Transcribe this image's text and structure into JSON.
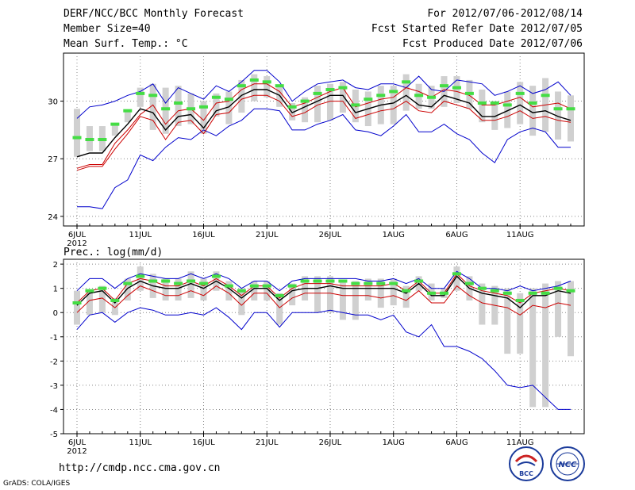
{
  "header": {
    "title": "DERF/NCC/BCC Monthly Forecast",
    "member_size": "Member Size=40",
    "variable": "Mean Surf. Temp.: °C",
    "period": "For 2012/07/06-2012/08/14",
    "started": "Fcst Started Refer Date 2012/07/05",
    "produced": "Fcst Produced Date 2012/07/06"
  },
  "footer": {
    "url": "http://cmdp.ncc.cma.gov.cn",
    "credit": "GrADS: COLA/IGES",
    "logo1_text": "BCC",
    "logo2_text": "NCC"
  },
  "colors": {
    "envelope": "#0000cc",
    "spread": "#cc0000",
    "mean": "#000000",
    "median": "#44dd44",
    "box": "#d0d0d0",
    "grid": "#888888"
  },
  "chart_data": [
    {
      "type": "line",
      "title": "Mean Surf. Temp.: °C",
      "xlabel": "",
      "ylabel": "°C",
      "ylim": [
        23.5,
        32.5
      ],
      "yticks": [
        24,
        27,
        30
      ],
      "grid": true,
      "x_tick_labels": [
        "6JUL",
        "11JUL",
        "16JUL",
        "21JUL",
        "26JUL",
        "1AUG",
        "6AUG",
        "11AUG"
      ],
      "x_year_label": "2012",
      "days": 40,
      "series": [
        {
          "name": "max",
          "values": [
            29.1,
            29.7,
            29.8,
            30.0,
            30.3,
            30.5,
            30.9,
            29.9,
            30.7,
            30.4,
            30.1,
            30.8,
            30.5,
            31.0,
            31.6,
            31.6,
            31.0,
            30.0,
            30.5,
            30.9,
            31.0,
            31.1,
            30.7,
            30.6,
            30.9,
            30.9,
            30.7,
            31.3,
            30.6,
            30.5,
            31.1,
            31.0,
            30.9,
            30.3,
            30.5,
            30.8,
            30.4,
            30.6,
            31.0,
            30.3
          ]
        },
        {
          "name": "p75",
          "values": [
            26.5,
            26.7,
            26.7,
            27.8,
            28.5,
            29.3,
            29.8,
            28.8,
            29.5,
            29.6,
            29.0,
            29.9,
            30.0,
            30.6,
            30.9,
            30.9,
            30.5,
            29.7,
            29.9,
            30.2,
            30.5,
            30.7,
            29.7,
            29.9,
            30.1,
            30.2,
            30.7,
            30.5,
            30.2,
            30.6,
            30.5,
            30.3,
            29.8,
            29.8,
            30.0,
            30.2,
            29.7,
            29.8,
            29.9,
            29.6
          ]
        },
        {
          "name": "mean",
          "values": [
            27.1,
            27.3,
            27.3,
            28.1,
            28.8,
            29.6,
            29.4,
            28.5,
            29.2,
            29.3,
            28.6,
            29.5,
            29.7,
            30.3,
            30.6,
            30.6,
            30.3,
            29.4,
            29.7,
            30.0,
            30.3,
            30.3,
            29.4,
            29.6,
            29.8,
            29.9,
            30.3,
            29.8,
            29.7,
            30.3,
            30.1,
            29.9,
            29.2,
            29.2,
            29.5,
            29.8,
            29.4,
            29.5,
            29.2,
            29.0
          ]
        },
        {
          "name": "p25",
          "values": [
            26.4,
            26.6,
            26.6,
            27.5,
            28.3,
            29.2,
            29.0,
            28.0,
            28.9,
            29.0,
            28.3,
            29.3,
            29.4,
            30.1,
            30.3,
            30.3,
            30.0,
            29.2,
            29.4,
            29.8,
            30.0,
            30.0,
            29.1,
            29.3,
            29.5,
            29.6,
            30.0,
            29.5,
            29.4,
            30.0,
            29.8,
            29.6,
            29.0,
            29.0,
            29.2,
            29.5,
            29.1,
            29.2,
            29.0,
            28.9
          ]
        },
        {
          "name": "min",
          "values": [
            24.5,
            24.5,
            24.4,
            25.5,
            25.9,
            27.2,
            26.9,
            27.6,
            28.1,
            28.0,
            28.5,
            28.2,
            28.7,
            29.0,
            29.6,
            29.6,
            29.5,
            28.5,
            28.5,
            28.8,
            29.0,
            29.3,
            28.5,
            28.4,
            28.2,
            28.7,
            29.3,
            28.4,
            28.4,
            28.8,
            28.3,
            28.0,
            27.3,
            26.8,
            28.0,
            28.4,
            28.6,
            28.4,
            27.6,
            27.6
          ]
        },
        {
          "name": "median",
          "values": [
            28.1,
            28.0,
            28.0,
            28.8,
            29.5,
            30.4,
            30.3,
            29.6,
            29.9,
            29.6,
            29.7,
            30.2,
            30.1,
            30.8,
            31.1,
            31.0,
            30.8,
            29.7,
            30.0,
            30.4,
            30.6,
            30.7,
            29.8,
            30.1,
            30.3,
            30.5,
            31.0,
            30.3,
            30.2,
            30.8,
            30.7,
            30.4,
            29.9,
            29.9,
            29.8,
            30.4,
            29.9,
            30.3,
            29.6,
            29.6
          ]
        },
        {
          "name": "box_low",
          "values": [
            27.1,
            27.4,
            27.4,
            28.2,
            28.9,
            29.7,
            28.5,
            28.3,
            28.7,
            28.8,
            28.3,
            29.2,
            28.8,
            29.4,
            30.0,
            30.2,
            29.7,
            29.0,
            28.9,
            28.9,
            29.0,
            29.4,
            28.9,
            28.7,
            28.8,
            28.8,
            29.5,
            29.6,
            29.6,
            29.7,
            29.9,
            29.6,
            28.9,
            28.5,
            28.6,
            28.8,
            28.2,
            28.4,
            28.0,
            27.9
          ]
        },
        {
          "name": "box_high",
          "values": [
            29.6,
            28.7,
            28.7,
            28.8,
            29.5,
            30.7,
            30.9,
            30.7,
            30.8,
            30.4,
            30.0,
            30.4,
            30.5,
            31.1,
            31.4,
            31.3,
            30.8,
            29.9,
            30.2,
            30.8,
            30.9,
            31.0,
            30.6,
            30.5,
            30.8,
            30.8,
            31.4,
            30.9,
            30.8,
            31.3,
            31.3,
            31.1,
            30.6,
            30.0,
            30.5,
            31.0,
            30.8,
            31.2,
            30.5,
            30.3
          ]
        }
      ]
    },
    {
      "type": "line",
      "title": "Prec.: log(mm/d)",
      "xlabel": "",
      "ylabel": "log(mm/d)",
      "ylim": [
        -5,
        2.2
      ],
      "yticks": [
        -5,
        -4,
        -3,
        -2,
        -1,
        0,
        1,
        2
      ],
      "grid": true,
      "x_tick_labels": [
        "6JUL",
        "11JUL",
        "16JUL",
        "21JUL",
        "26JUL",
        "1AUG",
        "6AUG",
        "11AUG"
      ],
      "x_year_label": "2012",
      "days": 40,
      "series": [
        {
          "name": "max",
          "values": [
            0.9,
            1.4,
            1.4,
            1.0,
            1.4,
            1.6,
            1.5,
            1.4,
            1.4,
            1.6,
            1.4,
            1.6,
            1.4,
            1.0,
            1.3,
            1.3,
            0.9,
            1.3,
            1.4,
            1.4,
            1.4,
            1.4,
            1.4,
            1.3,
            1.3,
            1.4,
            1.2,
            1.4,
            1.0,
            1.0,
            1.7,
            1.4,
            1.0,
            1.0,
            0.9,
            1.1,
            0.9,
            1.0,
            1.1,
            1.3
          ]
        },
        {
          "name": "p75",
          "values": [
            0.4,
            0.9,
            1.0,
            0.5,
            1.2,
            1.4,
            1.3,
            1.1,
            1.1,
            1.3,
            1.1,
            1.4,
            1.1,
            0.7,
            1.1,
            1.1,
            0.6,
            1.0,
            1.2,
            1.2,
            1.2,
            1.1,
            1.1,
            1.1,
            1.1,
            1.2,
            0.9,
            1.3,
            0.8,
            0.8,
            1.6,
            1.1,
            0.9,
            0.8,
            0.7,
            0.4,
            0.8,
            0.9,
            1.0,
            0.9
          ]
        },
        {
          "name": "mean",
          "values": [
            0.3,
            0.8,
            0.9,
            0.4,
            1.0,
            1.3,
            1.1,
            1.0,
            1.0,
            1.2,
            1.0,
            1.3,
            1.0,
            0.6,
            1.0,
            1.0,
            0.5,
            0.9,
            1.0,
            1.0,
            1.1,
            1.0,
            1.0,
            1.0,
            1.0,
            1.0,
            0.8,
            1.2,
            0.7,
            0.7,
            1.5,
            1.0,
            0.8,
            0.7,
            0.6,
            0.2,
            0.7,
            0.7,
            0.9,
            0.8
          ]
        },
        {
          "name": "p25",
          "values": [
            0.0,
            0.5,
            0.6,
            0.2,
            0.7,
            1.1,
            0.9,
            0.7,
            0.7,
            0.9,
            0.7,
            1.1,
            0.8,
            0.3,
            0.8,
            0.8,
            0.2,
            0.6,
            0.8,
            0.8,
            0.8,
            0.7,
            0.7,
            0.7,
            0.6,
            0.7,
            0.5,
            0.9,
            0.4,
            0.4,
            1.1,
            0.7,
            0.4,
            0.3,
            0.2,
            -0.1,
            0.3,
            0.2,
            0.4,
            0.3
          ]
        },
        {
          "name": "min",
          "values": [
            -0.7,
            -0.1,
            0.0,
            -0.4,
            0.0,
            0.2,
            0.1,
            -0.1,
            -0.1,
            0.0,
            -0.1,
            0.2,
            -0.2,
            -0.7,
            0.0,
            0.0,
            -0.6,
            0.0,
            0.0,
            0.0,
            0.1,
            0.0,
            -0.1,
            -0.1,
            -0.3,
            -0.1,
            -0.8,
            -1.0,
            -0.5,
            -1.4,
            -1.4,
            -1.6,
            -1.9,
            -2.4,
            -3.0,
            -3.1,
            -3.0,
            -3.5,
            -4.0,
            -4.0
          ]
        },
        {
          "name": "median",
          "values": [
            0.4,
            0.9,
            1.0,
            0.5,
            1.2,
            1.5,
            1.3,
            1.3,
            1.2,
            1.3,
            1.2,
            1.5,
            1.1,
            0.9,
            1.1,
            1.1,
            0.7,
            1.1,
            1.3,
            1.3,
            1.3,
            1.3,
            1.2,
            1.2,
            1.2,
            1.2,
            0.9,
            1.3,
            0.8,
            0.8,
            1.6,
            1.2,
            1.0,
            0.9,
            0.8,
            0.5,
            0.8,
            0.8,
            1.0,
            0.9
          ]
        },
        {
          "name": "box_low",
          "values": [
            -0.5,
            -0.1,
            0.0,
            -0.1,
            0.5,
            0.9,
            0.6,
            0.5,
            0.5,
            0.6,
            0.5,
            0.9,
            0.5,
            -0.1,
            0.5,
            0.5,
            -0.5,
            0.3,
            0.5,
            0.0,
            0.0,
            -0.3,
            -0.3,
            0.5,
            0.2,
            0.3,
            0.2,
            0.9,
            0.5,
            0.6,
            0.9,
            0.5,
            -0.5,
            -0.5,
            -1.7,
            -1.7,
            -3.9,
            -3.9,
            -1.0,
            -1.8
          ]
        },
        {
          "name": "box_high",
          "values": [
            0.9,
            0.9,
            1.1,
            0.6,
            1.4,
            1.9,
            1.6,
            1.4,
            1.4,
            1.7,
            1.4,
            1.7,
            1.3,
            1.0,
            1.3,
            1.3,
            0.8,
            1.2,
            1.5,
            1.5,
            1.5,
            1.3,
            1.3,
            1.4,
            1.4,
            1.4,
            1.1,
            1.5,
            1.2,
            1.0,
            1.9,
            1.5,
            1.2,
            1.1,
            1.0,
            0.8,
            1.0,
            1.2,
            1.3,
            1.3
          ]
        }
      ]
    }
  ]
}
